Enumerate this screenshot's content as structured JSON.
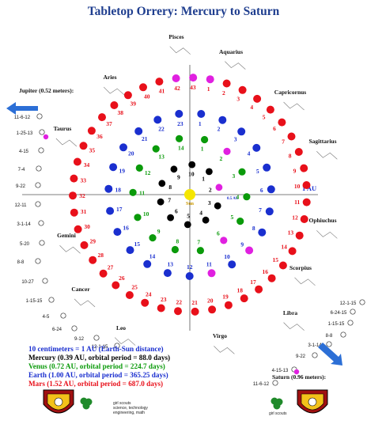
{
  "title": "Tabletop Orrery: Mercury to Saturn",
  "colors": {
    "mercury": "#000000",
    "venus": "#0a9a0a",
    "earth": "#1a2fcf",
    "mars": "#e8101a",
    "marker": "#e020e0",
    "sun": "#f5e600",
    "title": "#1f3e8f"
  },
  "sun_label": "Sun",
  "au_label": "1 AU",
  "half_au_label": "0.5 AU",
  "constellations": [
    "Pisces",
    "Aquarius",
    "Aries",
    "Capricornus",
    "Taurus",
    "Sagittarius",
    "Ophiuchus",
    "Gemini",
    "Scorpius",
    "Cancer",
    "Libra",
    "Leo",
    "Virgo"
  ],
  "jupiter": {
    "label": "Jupiter (0.52 meters):",
    "dates": [
      "11-6-12",
      "1-25-13",
      "4-15",
      "7-4",
      "9-22",
      "12-11",
      "3-1-14",
      "5-20",
      "8-8",
      "10-27",
      "1-15-15",
      "4-5",
      "6-24",
      "9-12",
      "12-1-15"
    ]
  },
  "saturn": {
    "label": "Saturn (0.96 meters):",
    "dates": [
      "12-1-15",
      "6-24-15",
      "1-15-15",
      "8-8",
      "3-1-14",
      "9-22",
      "4-15-13",
      "11-6-12"
    ]
  },
  "legend": [
    {
      "text": "10 centimeters = 1 AU (Earth-Sun distance)",
      "color": "#1a2fcf"
    },
    {
      "text": "Mercury (0.39 AU, orbital period = 88.0 days)",
      "color": "#000000"
    },
    {
      "text": "Venus (0.72 AU, orbital period = 224.7 days)",
      "color": "#0a9a0a"
    },
    {
      "text": "Earth (1.00 AU, orbital period = 365.25 days)",
      "color": "#1a2fcf"
    },
    {
      "text": "Mars (1.52 AU, orbital period = 687.0 days)",
      "color": "#e8101a"
    }
  ],
  "gs_text_left": "girl scouts\nscience, technology\nengineering, math",
  "gs_text_right": "girl scouts"
}
